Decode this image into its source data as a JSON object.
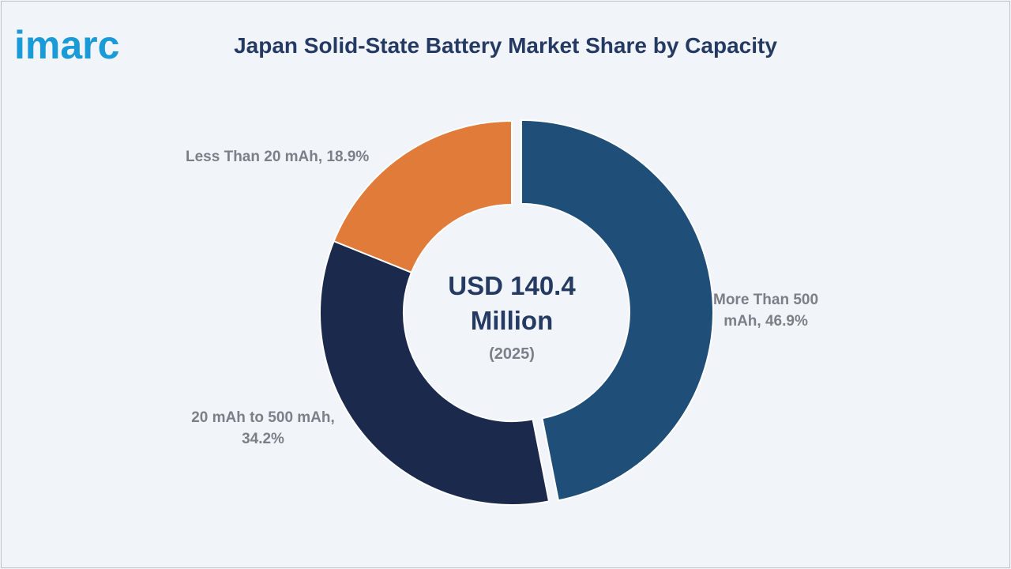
{
  "logo": {
    "text": "imarc",
    "color": "#1a9bd7"
  },
  "chart_data": {
    "type": "pie",
    "title": "Japan Solid-State Battery Market Share by Capacity",
    "center": {
      "value": "USD 140.4 Million",
      "line1": "USD 140.4",
      "line2": "Million",
      "year": "(2025)"
    },
    "slices": [
      {
        "name": "More Than 500 mAh",
        "value": 46.9,
        "color": "#1f4e79",
        "label_lines": [
          "More Than 500",
          "mAh, 46.9%"
        ]
      },
      {
        "name": "20 mAh to 500 mAh",
        "value": 34.2,
        "color": "#1b2a4c",
        "label_lines": [
          "20 mAh to 500 mAh,",
          "34.2%"
        ]
      },
      {
        "name": "Less Than 20 mAh",
        "value": 18.9,
        "color": "#e07b39",
        "label_lines": [
          "Less Than 20 mAh, 18.9%"
        ]
      }
    ],
    "legend": "none",
    "donut": true
  }
}
